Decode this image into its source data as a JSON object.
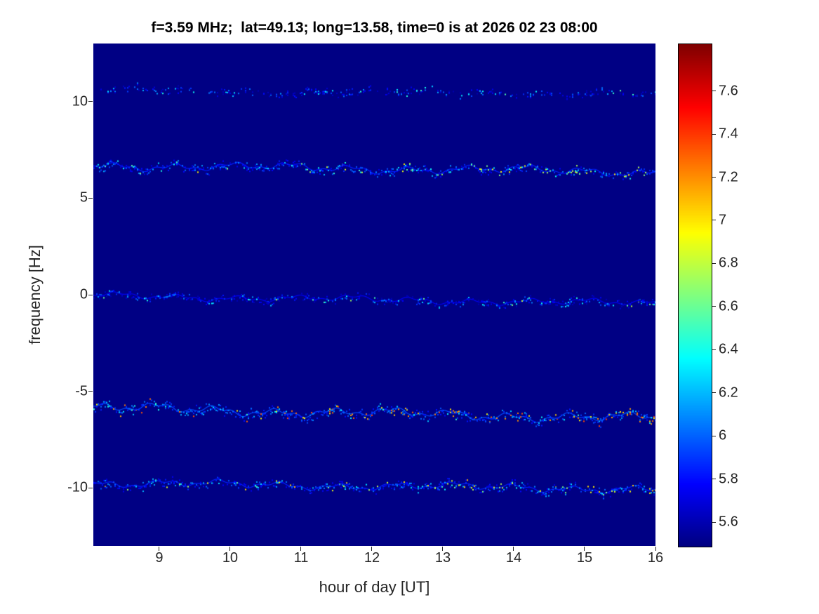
{
  "chart_data": {
    "type": "heatmap",
    "title": "f=3.59 MHz;  lat=49.13; long=13.58, time=0 is at 2026 02 23 08:00",
    "xlabel": "hour of day [UT]",
    "ylabel": "frequency [Hz]",
    "xlim": [
      8.07,
      16
    ],
    "ylim": [
      -13,
      13
    ],
    "xticks": [
      9,
      10,
      11,
      12,
      13,
      14,
      15,
      16
    ],
    "yticks": [
      -10,
      -5,
      0,
      5,
      10
    ],
    "colormap": "jet",
    "background_value": 5.5,
    "grid": false,
    "colorbar": {
      "position": "right",
      "vmin": 5.49,
      "vmax": 7.82,
      "ticks": [
        5.6,
        5.8,
        6,
        6.2,
        6.4,
        6.6,
        6.8,
        7,
        7.2,
        7.4,
        7.6
      ]
    },
    "traces": [
      {
        "name": "doppler-line-plus-10.5Hz",
        "freq_start": 10.6,
        "freq_end": 10.4,
        "density": 0.45,
        "value_low": 5.6,
        "value_high": 6.6,
        "hot_fraction": 0.04,
        "wiggle_amp": 0.12,
        "thickness": 0.22
      },
      {
        "name": "doppler-line-plus-6.5Hz",
        "freq_start": 6.7,
        "freq_end": 6.35,
        "density": 0.85,
        "value_low": 5.7,
        "value_high": 7.0,
        "hot_fraction": 0.1,
        "wiggle_amp": 0.15,
        "thickness": 0.28
      },
      {
        "name": "doppler-line-0Hz",
        "freq_start": -0.05,
        "freq_end": -0.45,
        "density": 0.7,
        "value_low": 5.6,
        "value_high": 6.8,
        "hot_fraction": 0.06,
        "wiggle_amp": 0.12,
        "thickness": 0.24
      },
      {
        "name": "doppler-line-minus-6Hz",
        "freq_start": -5.85,
        "freq_end": -6.4,
        "density": 0.92,
        "value_low": 5.8,
        "value_high": 7.4,
        "hot_fraction": 0.17,
        "wiggle_amp": 0.17,
        "thickness": 0.32
      },
      {
        "name": "doppler-line-minus-10Hz",
        "freq_start": -9.75,
        "freq_end": -10.05,
        "density": 0.82,
        "value_low": 5.7,
        "value_high": 7.1,
        "hot_fraction": 0.12,
        "wiggle_amp": 0.14,
        "thickness": 0.28
      }
    ]
  }
}
